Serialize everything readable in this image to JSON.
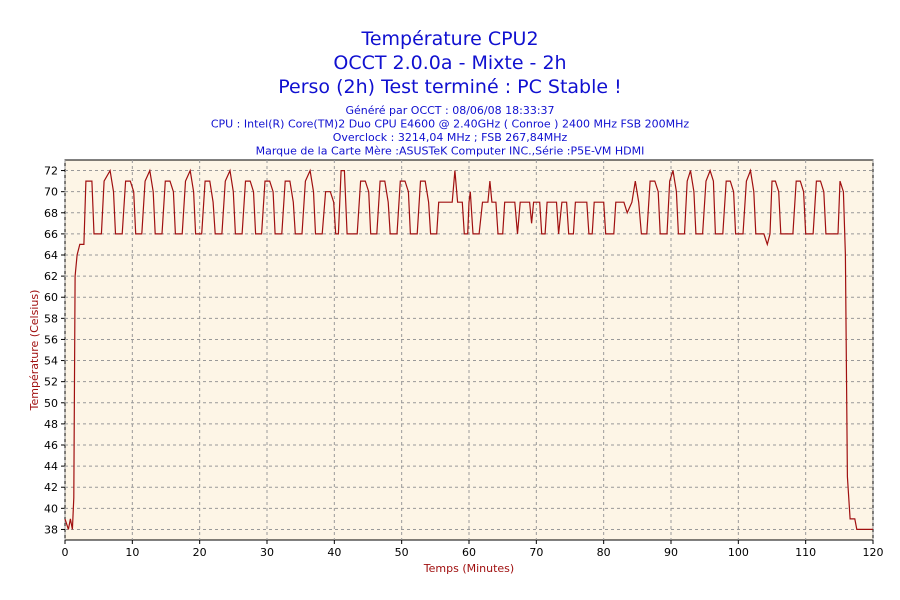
{
  "chart_data": {
    "type": "line",
    "title": [
      "Température CPU2",
      "OCCT 2.0.0a - Mixte - 2h",
      "Perso (2h) Test terminé : PC Stable !"
    ],
    "subtitle": [
      "Généré par OCCT : 08/06/08 18:33:37",
      "CPU : Intel(R) Core(TM)2 Duo CPU E4600 @ 2.40GHz ( Conroe ) 2400 MHz FSB 200MHz",
      "Overclock : 3214,04 MHz ; FSB 267,84MHz",
      "Marque de la Carte Mère :ASUSTeK Computer INC.,Série :P5E-VM HDMI"
    ],
    "x_label": "Temps (Minutes)",
    "y_label": "Température (Celsius)",
    "xlim": [
      0,
      120
    ],
    "xticks": [
      0,
      10,
      20,
      30,
      40,
      50,
      60,
      70,
      80,
      90,
      100,
      110,
      120
    ],
    "ylim": [
      37,
      73
    ],
    "yticks": [
      38,
      40,
      42,
      44,
      46,
      48,
      50,
      52,
      54,
      56,
      58,
      60,
      62,
      64,
      66,
      68,
      70,
      72
    ],
    "grid": true,
    "series": [
      {
        "color": "#a01010",
        "x": [
          0,
          0.5,
          0.8,
          1.1,
          1.3,
          1.5,
          1.8,
          2.2,
          2.8,
          3.1,
          4.0,
          4.3,
          5.4,
          5.8,
          6.7,
          7.2,
          7.5,
          8.5,
          9.0,
          9.7,
          10.2,
          10.5,
          11.4,
          11.9,
          12.6,
          13.1,
          13.4,
          14.4,
          14.9,
          15.6,
          16.1,
          16.4,
          17.4,
          17.9,
          18.6,
          19.1,
          19.4,
          20.3,
          20.8,
          21.5,
          22.0,
          22.3,
          23.3,
          23.8,
          24.5,
          25.0,
          25.3,
          26.3,
          26.8,
          27.5,
          28.0,
          28.3,
          29.2,
          29.7,
          30.4,
          30.9,
          31.2,
          32.2,
          32.7,
          33.4,
          33.9,
          34.2,
          35.2,
          35.7,
          36.4,
          36.9,
          37.2,
          38.2,
          38.7,
          39.4,
          39.9,
          40.2,
          40.6,
          41.0,
          41.5,
          41.9,
          43.4,
          43.9,
          44.6,
          45.1,
          45.4,
          46.3,
          46.8,
          47.5,
          48.0,
          48.3,
          49.3,
          49.8,
          50.5,
          51.0,
          51.3,
          52.3,
          52.8,
          53.5,
          54.0,
          54.3,
          55.2,
          55.5,
          57.0,
          57.5,
          57.9,
          58.3,
          59.0,
          59.3,
          59.8,
          60.0,
          60.2,
          60.6,
          61.5,
          62.0,
          62.8,
          63.1,
          63.4,
          64.0,
          64.3,
          65.0,
          65.3,
          66.8,
          67.2,
          67.6,
          69.0,
          69.3,
          69.6,
          70.5,
          70.8,
          71.3,
          71.6,
          73.0,
          73.3,
          73.8,
          74.5,
          74.8,
          75.5,
          75.8,
          77.5,
          77.8,
          78.3,
          78.6,
          80.0,
          80.3,
          81.5,
          81.8,
          83.0,
          83.5,
          84.2,
          84.7,
          85.2,
          85.6,
          86.4,
          86.9,
          87.6,
          88.1,
          88.4,
          89.4,
          89.8,
          90.3,
          90.8,
          91.1,
          92.0,
          92.4,
          92.9,
          93.4,
          93.7,
          94.7,
          95.2,
          95.8,
          96.3,
          96.6,
          97.7,
          98.2,
          98.8,
          99.3,
          99.6,
          100.7,
          101.2,
          101.8,
          102.3,
          102.6,
          103.8,
          104.3,
          104.7,
          105.0,
          105.5,
          106.0,
          106.3,
          108.1,
          108.6,
          109.2,
          109.7,
          110.0,
          111.1,
          111.6,
          112.2,
          112.7,
          113.0,
          114.8,
          115.1,
          115.6,
          115.9,
          116.2,
          116.6,
          117.3,
          117.6,
          120
        ],
        "values": [
          39,
          38,
          39,
          38,
          41,
          62,
          64,
          65,
          65,
          71,
          71,
          66,
          66,
          71,
          72,
          70,
          66,
          66,
          71,
          71,
          70,
          66,
          66,
          71,
          72,
          70,
          66,
          66,
          71,
          71,
          70,
          66,
          66,
          71,
          72,
          70,
          66,
          66,
          71,
          71,
          69,
          66,
          66,
          71,
          72,
          70,
          66,
          66,
          71,
          71,
          70,
          66,
          66,
          71,
          71,
          70,
          66,
          66,
          71,
          71,
          69,
          66,
          66,
          71,
          72,
          70,
          66,
          66,
          70,
          70,
          69,
          66,
          66,
          72,
          72,
          66,
          66,
          71,
          71,
          70,
          66,
          66,
          71,
          71,
          69,
          66,
          66,
          71,
          71,
          70,
          66,
          66,
          71,
          71,
          69,
          66,
          66,
          69,
          69,
          69,
          72,
          69,
          69,
          66,
          66,
          69,
          70,
          66,
          66,
          69,
          69,
          71,
          69,
          69,
          66,
          66,
          69,
          69,
          66,
          69,
          69,
          67,
          69,
          69,
          66,
          66,
          69,
          69,
          66,
          69,
          69,
          66,
          66,
          69,
          69,
          66,
          66,
          69,
          69,
          66,
          66,
          69,
          69,
          68,
          69,
          71,
          69,
          66,
          66,
          71,
          71,
          70,
          66,
          66,
          71,
          72,
          70,
          66,
          66,
          71,
          72,
          70,
          66,
          66,
          71,
          72,
          71,
          66,
          66,
          71,
          71,
          70,
          66,
          66,
          71,
          72,
          70,
          66,
          66,
          65,
          66,
          71,
          71,
          70,
          66,
          66,
          71,
          71,
          70,
          66,
          66,
          71,
          71,
          70,
          66,
          66,
          71,
          70,
          64,
          43,
          39,
          39,
          38,
          38
        ]
      }
    ]
  }
}
